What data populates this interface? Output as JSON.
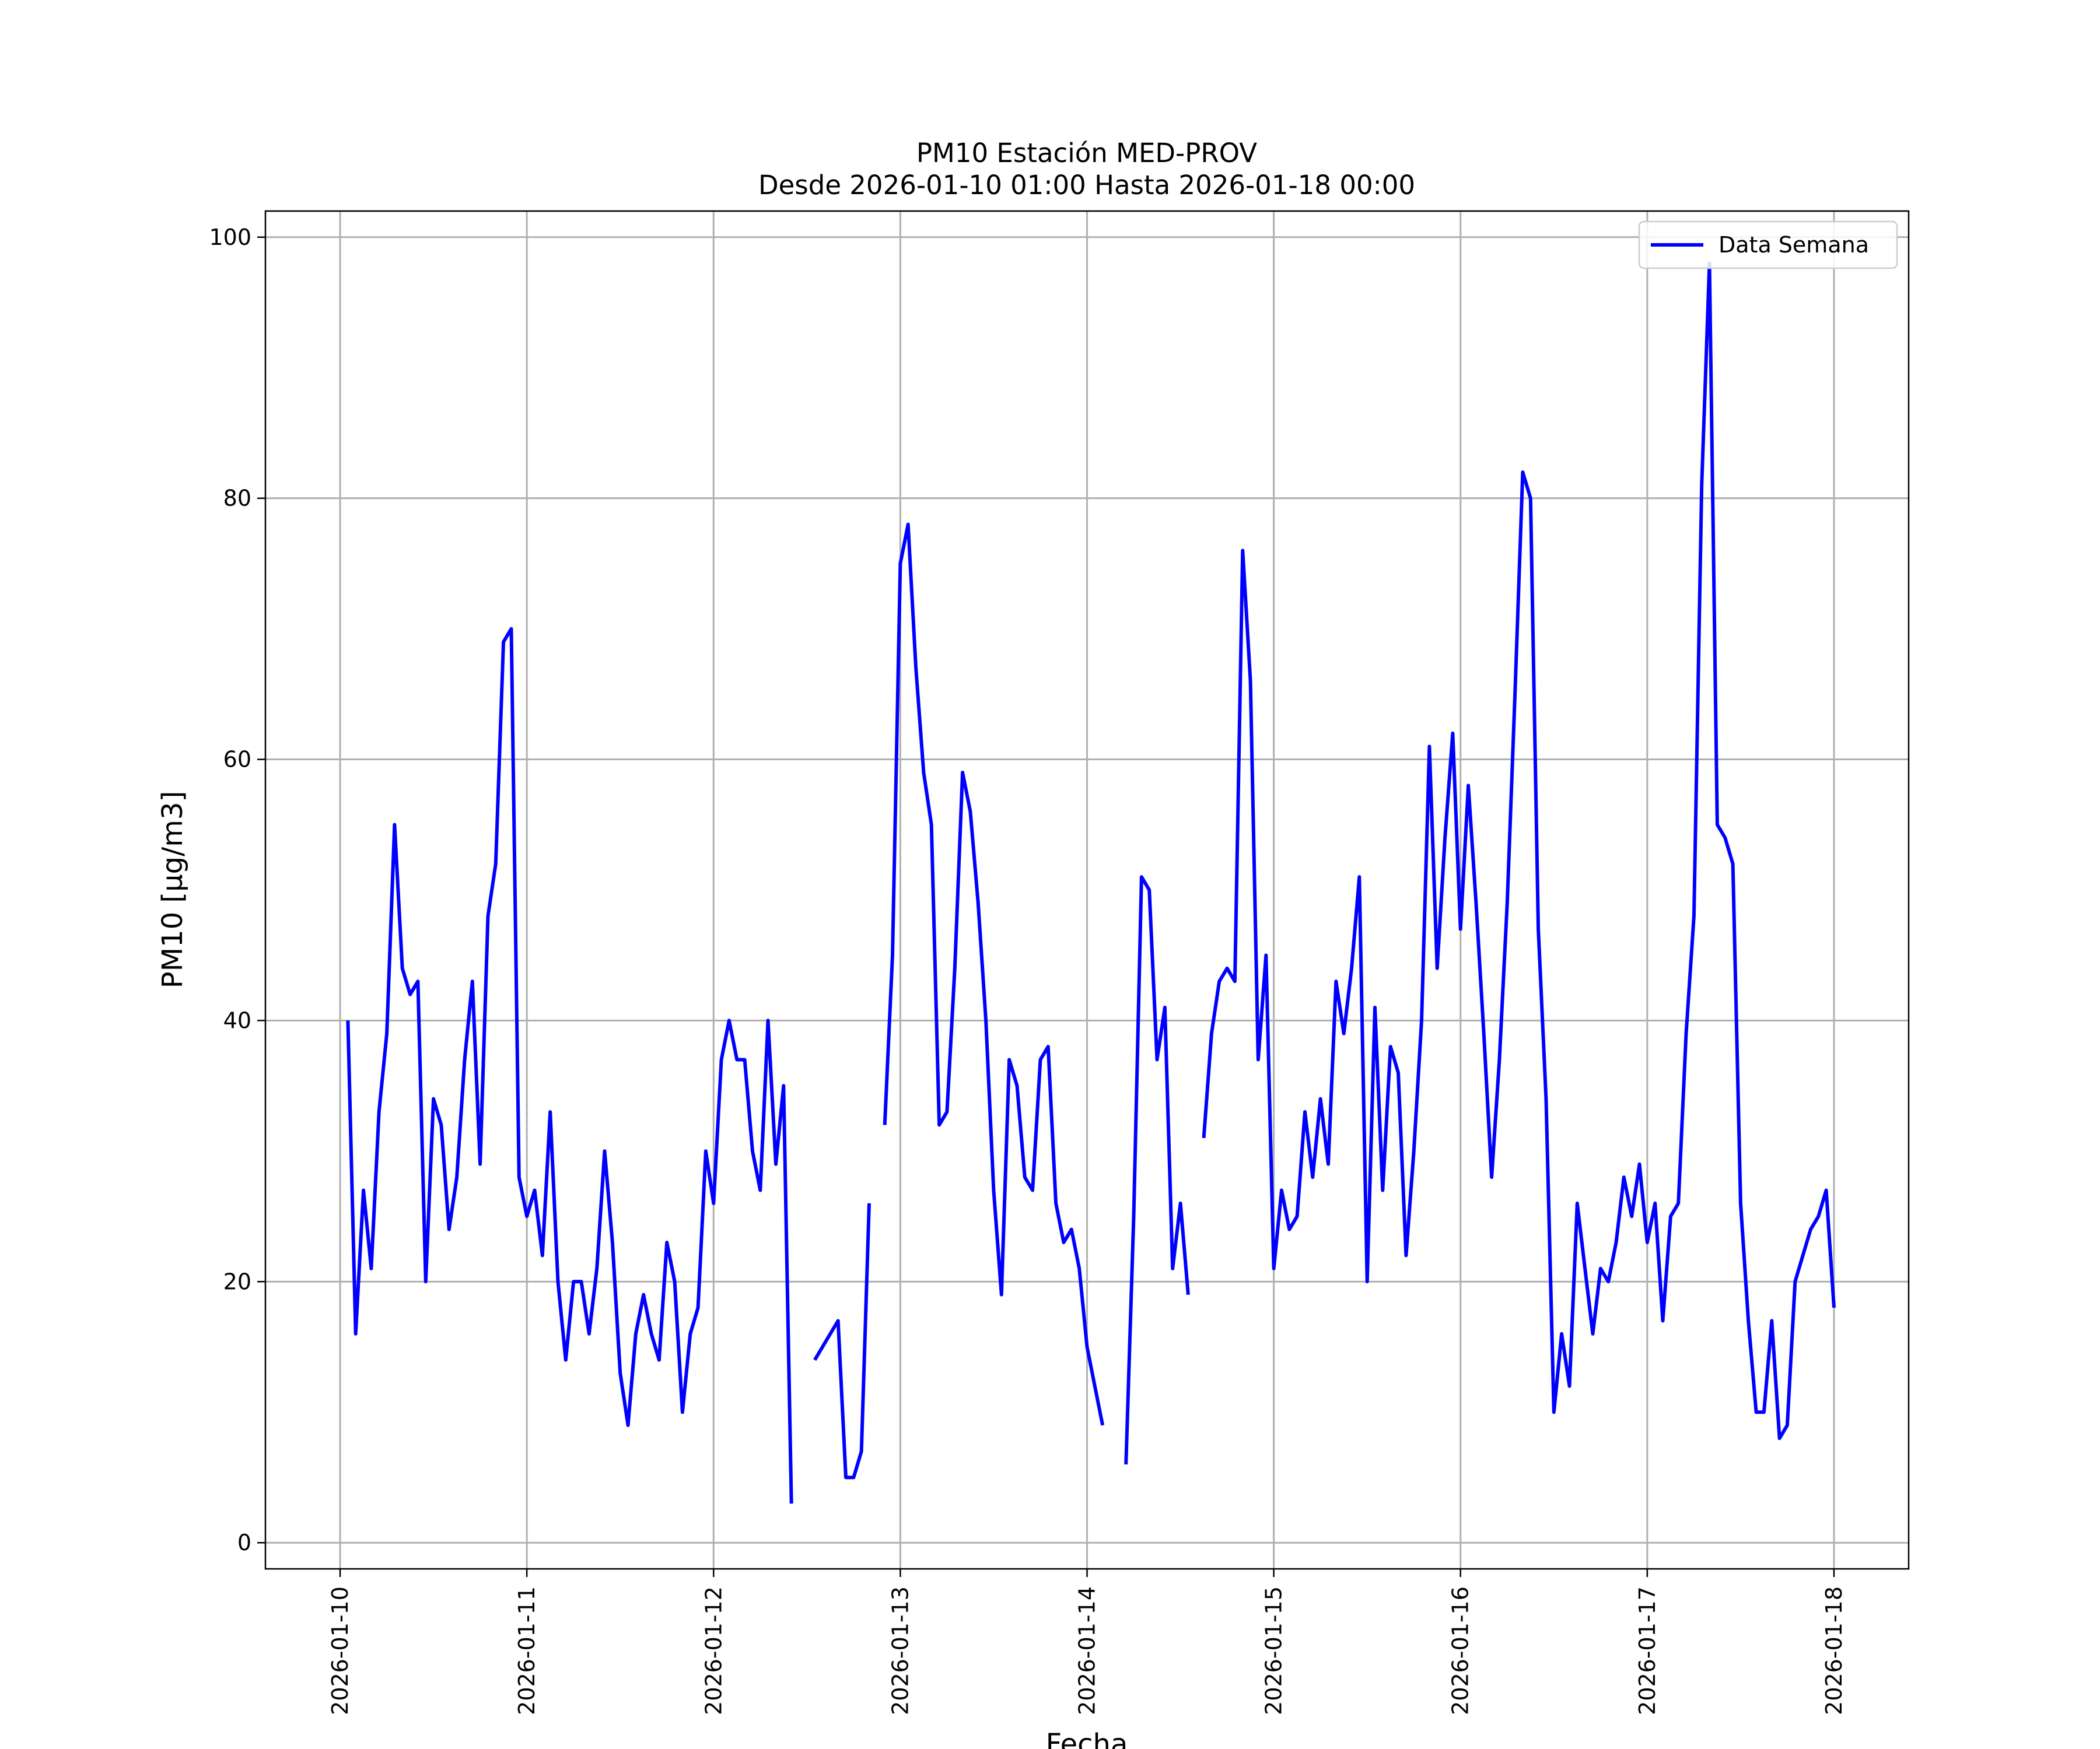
{
  "chart_data": {
    "type": "line",
    "title": "PM10 Estación MED-PROV",
    "subtitle": "Desde 2026-01-10 01:00 Hasta 2026-01-18 00:00",
    "xlabel": "Fecha",
    "ylabel": "PM10 [μg/m3]",
    "xlim": [
      "2026-01-09 14:24",
      "2026-01-18 09:36"
    ],
    "ylim": [
      -2,
      102
    ],
    "x_ticks": [
      "2026-01-10",
      "2026-01-11",
      "2026-01-12",
      "2026-01-13",
      "2026-01-14",
      "2026-01-15",
      "2026-01-16",
      "2026-01-17",
      "2026-01-18"
    ],
    "y_ticks": [
      "0",
      "20",
      "40",
      "60",
      "80",
      "100"
    ],
    "grid": true,
    "legend": {
      "position": "top-right",
      "entries": [
        "Data Semana"
      ]
    },
    "colors": {
      "series": "#0000ff",
      "grid": "#b0b0b0"
    },
    "series": [
      {
        "name": "Data Semana",
        "segments": [
          [
            [
              "2026-01-10 01:00",
              40
            ],
            [
              "2026-01-10 02:00",
              16
            ],
            [
              "2026-01-10 03:00",
              27
            ],
            [
              "2026-01-10 04:00",
              21
            ],
            [
              "2026-01-10 05:00",
              33
            ],
            [
              "2026-01-10 06:00",
              39
            ],
            [
              "2026-01-10 07:00",
              55
            ],
            [
              "2026-01-10 08:00",
              44
            ],
            [
              "2026-01-10 09:00",
              42
            ],
            [
              "2026-01-10 10:00",
              43
            ],
            [
              "2026-01-10 11:00",
              20
            ],
            [
              "2026-01-10 12:00",
              34
            ],
            [
              "2026-01-10 13:00",
              32
            ],
            [
              "2026-01-10 14:00",
              24
            ],
            [
              "2026-01-10 15:00",
              28
            ],
            [
              "2026-01-10 16:00",
              37
            ],
            [
              "2026-01-10 17:00",
              43
            ],
            [
              "2026-01-10 18:00",
              29
            ],
            [
              "2026-01-10 19:00",
              48
            ],
            [
              "2026-01-10 20:00",
              52
            ],
            [
              "2026-01-10 21:00",
              69
            ],
            [
              "2026-01-10 22:00",
              70
            ],
            [
              "2026-01-10 23:00",
              28
            ],
            [
              "2026-01-11 00:00",
              25
            ],
            [
              "2026-01-11 01:00",
              27
            ],
            [
              "2026-01-11 02:00",
              22
            ],
            [
              "2026-01-11 03:00",
              33
            ],
            [
              "2026-01-11 04:00",
              20
            ],
            [
              "2026-01-11 05:00",
              14
            ],
            [
              "2026-01-11 06:00",
              20
            ],
            [
              "2026-01-11 07:00",
              20
            ],
            [
              "2026-01-11 08:00",
              16
            ],
            [
              "2026-01-11 09:00",
              21
            ],
            [
              "2026-01-11 10:00",
              30
            ],
            [
              "2026-01-11 11:00",
              23
            ],
            [
              "2026-01-11 12:00",
              13
            ],
            [
              "2026-01-11 13:00",
              9
            ],
            [
              "2026-01-11 14:00",
              16
            ],
            [
              "2026-01-11 15:00",
              19
            ],
            [
              "2026-01-11 16:00",
              16
            ],
            [
              "2026-01-11 17:00",
              14
            ],
            [
              "2026-01-11 18:00",
              23
            ],
            [
              "2026-01-11 19:00",
              20
            ],
            [
              "2026-01-11 20:00",
              10
            ],
            [
              "2026-01-11 21:00",
              16
            ],
            [
              "2026-01-11 22:00",
              18
            ],
            [
              "2026-01-11 23:00",
              30
            ],
            [
              "2026-01-12 00:00",
              26
            ],
            [
              "2026-01-12 01:00",
              37
            ],
            [
              "2026-01-12 02:00",
              40
            ],
            [
              "2026-01-12 03:00",
              37
            ],
            [
              "2026-01-12 04:00",
              37
            ],
            [
              "2026-01-12 05:00",
              30
            ],
            [
              "2026-01-12 06:00",
              27
            ],
            [
              "2026-01-12 07:00",
              40
            ],
            [
              "2026-01-12 08:00",
              29
            ],
            [
              "2026-01-12 09:00",
              35
            ],
            [
              "2026-01-12 10:00",
              3
            ]
          ],
          [
            [
              "2026-01-12 13:00",
              14
            ],
            [
              "2026-01-12 14:00",
              15
            ],
            [
              "2026-01-12 15:00",
              16
            ],
            [
              "2026-01-12 16:00",
              17
            ],
            [
              "2026-01-12 17:00",
              5
            ],
            [
              "2026-01-12 18:00",
              5
            ],
            [
              "2026-01-12 19:00",
              7
            ],
            [
              "2026-01-12 20:00",
              26
            ]
          ],
          [
            [
              "2026-01-12 22:00",
              32
            ],
            [
              "2026-01-12 23:00",
              45
            ],
            [
              "2026-01-13 00:00",
              75
            ],
            [
              "2026-01-13 01:00",
              78
            ],
            [
              "2026-01-13 02:00",
              67
            ],
            [
              "2026-01-13 03:00",
              59
            ],
            [
              "2026-01-13 04:00",
              55
            ],
            [
              "2026-01-13 05:00",
              32
            ],
            [
              "2026-01-13 06:00",
              33
            ],
            [
              "2026-01-13 07:00",
              44
            ],
            [
              "2026-01-13 08:00",
              59
            ],
            [
              "2026-01-13 09:00",
              56
            ],
            [
              "2026-01-13 10:00",
              49
            ],
            [
              "2026-01-13 11:00",
              40
            ],
            [
              "2026-01-13 12:00",
              27
            ],
            [
              "2026-01-13 13:00",
              19
            ],
            [
              "2026-01-13 14:00",
              37
            ],
            [
              "2026-01-13 15:00",
              35
            ],
            [
              "2026-01-13 16:00",
              28
            ],
            [
              "2026-01-13 17:00",
              27
            ],
            [
              "2026-01-13 18:00",
              37
            ],
            [
              "2026-01-13 19:00",
              38
            ],
            [
              "2026-01-13 20:00",
              26
            ],
            [
              "2026-01-13 21:00",
              23
            ],
            [
              "2026-01-13 22:00",
              24
            ],
            [
              "2026-01-13 23:00",
              21
            ],
            [
              "2026-01-14 00:00",
              15
            ],
            [
              "2026-01-14 01:00",
              12
            ],
            [
              "2026-01-14 02:00",
              9
            ]
          ],
          [
            [
              "2026-01-14 05:00",
              6
            ],
            [
              "2026-01-14 06:00",
              25
            ],
            [
              "2026-01-14 07:00",
              51
            ],
            [
              "2026-01-14 08:00",
              50
            ],
            [
              "2026-01-14 09:00",
              37
            ],
            [
              "2026-01-14 10:00",
              41
            ],
            [
              "2026-01-14 11:00",
              21
            ],
            [
              "2026-01-14 12:00",
              26
            ],
            [
              "2026-01-14 13:00",
              19
            ]
          ],
          [
            [
              "2026-01-14 15:00",
              31
            ],
            [
              "2026-01-14 16:00",
              39
            ],
            [
              "2026-01-14 17:00",
              43
            ],
            [
              "2026-01-14 18:00",
              44
            ],
            [
              "2026-01-14 19:00",
              43
            ],
            [
              "2026-01-14 20:00",
              76
            ],
            [
              "2026-01-14 21:00",
              66
            ],
            [
              "2026-01-14 22:00",
              37
            ],
            [
              "2026-01-14 23:00",
              45
            ],
            [
              "2026-01-15 00:00",
              21
            ],
            [
              "2026-01-15 01:00",
              27
            ],
            [
              "2026-01-15 02:00",
              24
            ],
            [
              "2026-01-15 03:00",
              25
            ],
            [
              "2026-01-15 04:00",
              33
            ],
            [
              "2026-01-15 05:00",
              28
            ],
            [
              "2026-01-15 06:00",
              34
            ],
            [
              "2026-01-15 07:00",
              29
            ],
            [
              "2026-01-15 08:00",
              43
            ],
            [
              "2026-01-15 09:00",
              39
            ],
            [
              "2026-01-15 10:00",
              44
            ],
            [
              "2026-01-15 11:00",
              51
            ],
            [
              "2026-01-15 12:00",
              20
            ],
            [
              "2026-01-15 13:00",
              41
            ],
            [
              "2026-01-15 14:00",
              27
            ],
            [
              "2026-01-15 15:00",
              38
            ],
            [
              "2026-01-15 16:00",
              36
            ],
            [
              "2026-01-15 17:00",
              22
            ],
            [
              "2026-01-15 18:00",
              30
            ],
            [
              "2026-01-15 19:00",
              40
            ],
            [
              "2026-01-15 20:00",
              61
            ],
            [
              "2026-01-15 21:00",
              44
            ],
            [
              "2026-01-15 22:00",
              54
            ],
            [
              "2026-01-15 23:00",
              62
            ],
            [
              "2026-01-16 00:00",
              47
            ],
            [
              "2026-01-16 01:00",
              58
            ],
            [
              "2026-01-16 02:00",
              49
            ],
            [
              "2026-01-16 03:00",
              39
            ],
            [
              "2026-01-16 04:00",
              28
            ],
            [
              "2026-01-16 05:00",
              37
            ],
            [
              "2026-01-16 06:00",
              49
            ],
            [
              "2026-01-16 07:00",
              65
            ],
            [
              "2026-01-16 08:00",
              82
            ],
            [
              "2026-01-16 09:00",
              80
            ],
            [
              "2026-01-16 10:00",
              47
            ],
            [
              "2026-01-16 11:00",
              34
            ],
            [
              "2026-01-16 12:00",
              10
            ],
            [
              "2026-01-16 13:00",
              16
            ],
            [
              "2026-01-16 14:00",
              12
            ],
            [
              "2026-01-16 15:00",
              26
            ],
            [
              "2026-01-16 16:00",
              21
            ],
            [
              "2026-01-16 17:00",
              16
            ],
            [
              "2026-01-16 18:00",
              21
            ],
            [
              "2026-01-16 19:00",
              20
            ],
            [
              "2026-01-16 20:00",
              23
            ],
            [
              "2026-01-16 21:00",
              28
            ],
            [
              "2026-01-16 22:00",
              25
            ],
            [
              "2026-01-16 23:00",
              29
            ],
            [
              "2026-01-17 00:00",
              23
            ],
            [
              "2026-01-17 01:00",
              26
            ],
            [
              "2026-01-17 02:00",
              17
            ],
            [
              "2026-01-17 03:00",
              25
            ],
            [
              "2026-01-17 04:00",
              26
            ],
            [
              "2026-01-17 05:00",
              39
            ],
            [
              "2026-01-17 06:00",
              48
            ],
            [
              "2026-01-17 07:00",
              81
            ],
            [
              "2026-01-17 08:00",
              98
            ],
            [
              "2026-01-17 09:00",
              55
            ],
            [
              "2026-01-17 10:00",
              54
            ],
            [
              "2026-01-17 11:00",
              52
            ],
            [
              "2026-01-17 12:00",
              26
            ],
            [
              "2026-01-17 13:00",
              17
            ],
            [
              "2026-01-17 14:00",
              10
            ],
            [
              "2026-01-17 15:00",
              10
            ],
            [
              "2026-01-17 16:00",
              17
            ],
            [
              "2026-01-17 17:00",
              8
            ],
            [
              "2026-01-17 18:00",
              9
            ],
            [
              "2026-01-17 19:00",
              20
            ],
            [
              "2026-01-17 20:00",
              22
            ],
            [
              "2026-01-17 21:00",
              24
            ],
            [
              "2026-01-17 22:00",
              25
            ],
            [
              "2026-01-17 23:00",
              27
            ],
            [
              "2026-01-18 00:00",
              18
            ]
          ]
        ]
      }
    ]
  }
}
